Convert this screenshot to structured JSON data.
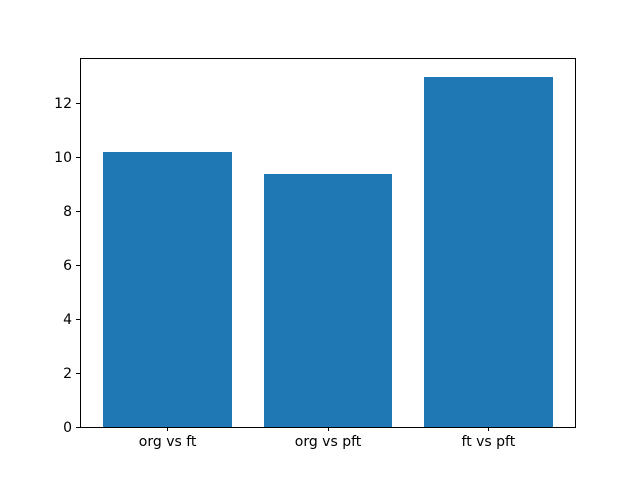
{
  "chart_data": {
    "type": "bar",
    "categories": [
      "org vs ft",
      "org vs pft",
      "ft vs pft"
    ],
    "values": [
      10.2,
      9.4,
      13.0
    ],
    "title": "",
    "xlabel": "",
    "ylabel": "",
    "xlim": [
      -0.54,
      2.54
    ],
    "ylim": [
      0,
      13.65
    ],
    "yticks": [
      0,
      2,
      4,
      6,
      8,
      10,
      12
    ],
    "bar_width": 0.8,
    "bar_color": "#1f77b4",
    "spine_color": "#000000",
    "background_color": "#ffffff",
    "grid": false,
    "legend": null
  }
}
